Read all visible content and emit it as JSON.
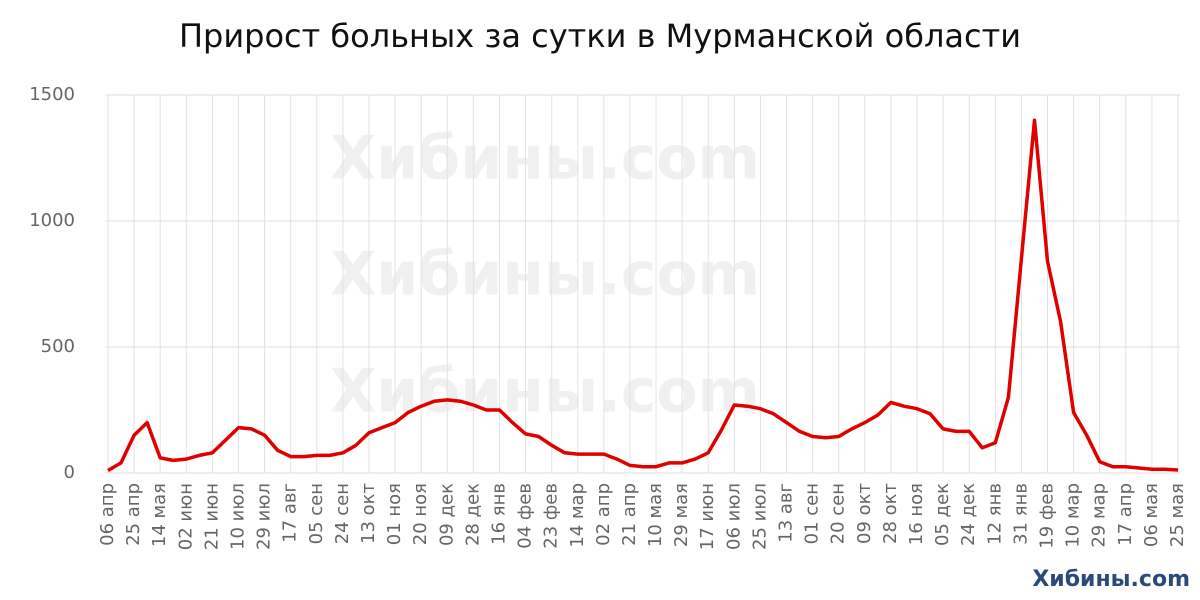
{
  "chart_data": {
    "type": "line",
    "title": "Прирост больных за сутки в Мурманской области",
    "watermark": "Хибины.com",
    "categories": [
      "06 апр",
      null,
      "25 апр",
      null,
      "14 мая",
      null,
      "02 июн",
      null,
      "21 июн",
      null,
      "10 июл",
      null,
      "29 июл",
      null,
      "17 авг",
      null,
      "05 сен",
      null,
      "24 сен",
      null,
      "13 окт",
      null,
      "01 ноя",
      null,
      "20 ноя",
      null,
      "09 дек",
      null,
      "28 дек",
      null,
      "16 янв",
      null,
      "04 фев",
      null,
      "23 фев",
      null,
      "14 мар",
      null,
      "02 апр",
      null,
      "21 апр",
      null,
      "10 мая",
      null,
      "29 мая",
      null,
      "17 июн",
      null,
      "06 июл",
      null,
      "25 июл",
      null,
      "13 авг",
      null,
      "01 сен",
      null,
      "20 сен",
      null,
      "09 окт",
      null,
      "28 окт",
      null,
      "16 ноя",
      null,
      "05 дек",
      null,
      "24 дек",
      null,
      "12 янв",
      null,
      "31 янв",
      null,
      "19 фев",
      null,
      "10 мар",
      null,
      "29 мар",
      null,
      "17 апр",
      null,
      "06 мая",
      null,
      "25 мая"
    ],
    "series": [
      {
        "color": "#e00000",
        "values": [
          10,
          40,
          150,
          200,
          60,
          50,
          55,
          70,
          80,
          130,
          180,
          175,
          150,
          90,
          65,
          65,
          70,
          70,
          80,
          110,
          160,
          180,
          200,
          240,
          265,
          285,
          290,
          285,
          270,
          250,
          250,
          200,
          155,
          145,
          110,
          80,
          75,
          75,
          75,
          55,
          30,
          25,
          25,
          40,
          40,
          55,
          80,
          170,
          270,
          265,
          255,
          235,
          200,
          165,
          145,
          140,
          145,
          175,
          200,
          230,
          280,
          265,
          255,
          235,
          175,
          165,
          165,
          100,
          120,
          300,
          850,
          1400,
          840,
          600,
          240,
          150,
          45,
          25,
          25,
          20,
          15,
          15,
          12
        ]
      }
    ],
    "ylim": [
      0,
      1500
    ],
    "yticks": [
      0,
      500,
      1000,
      1500
    ],
    "grid": true
  }
}
